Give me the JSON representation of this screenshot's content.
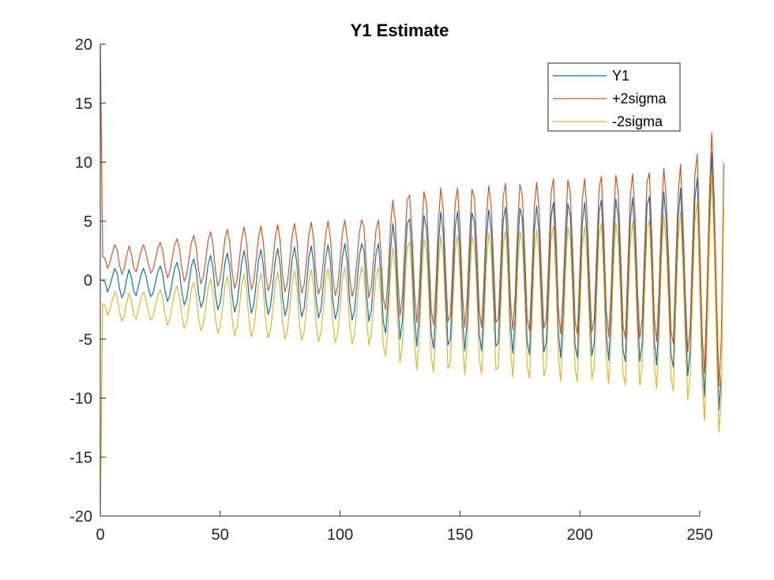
{
  "chart_data": {
    "type": "line",
    "title": "Y1 Estimate",
    "xlabel": "",
    "ylabel": "",
    "xlim": [
      0,
      250
    ],
    "ylim": [
      -20,
      20
    ],
    "x_ticks": [
      0,
      50,
      100,
      150,
      200,
      250
    ],
    "y_ticks": [
      -20,
      -15,
      -10,
      -5,
      0,
      5,
      10,
      15,
      20
    ],
    "grid": false,
    "legend_position": "top-right",
    "series": [
      {
        "name": "Y1",
        "color": "#0072BD",
        "x_start": 0,
        "x_step": 1,
        "values": [
          0,
          0,
          -0.2,
          -1,
          -0.5,
          0.3,
          1,
          0.6,
          -0.7,
          -1.5,
          -1,
          0.1,
          0.9,
          0.2,
          -1,
          -1.3,
          -0.4,
          0.5,
          1,
          0.4,
          -0.6,
          -1.4,
          -1.1,
          -0.2,
          0.7,
          1.2,
          0.5,
          -0.9,
          -1.8,
          -1.3,
          -0.1,
          1,
          1.5,
          0.7,
          -1,
          -2.1,
          -1.6,
          -0.2,
          1.2,
          1.8,
          0.8,
          -1.2,
          -2.3,
          -1.7,
          -0.2,
          1.4,
          2.1,
          1,
          -1.2,
          -2.5,
          -1.9,
          -0.3,
          1.5,
          2.3,
          1.1,
          -1.3,
          -2.7,
          -2,
          -0.3,
          1.6,
          2.5,
          1.2,
          -1.4,
          -2.8,
          -2.1,
          -0.3,
          1.7,
          2.6,
          1.2,
          -1.5,
          -2.9,
          -2.2,
          -0.4,
          1.7,
          2.7,
          1.3,
          -1.5,
          -3,
          -2.3,
          -0.4,
          1.8,
          2.8,
          1.4,
          -1.6,
          -3.1,
          -2.4,
          -0.4,
          1.9,
          2.9,
          1.4,
          -1.7,
          -3.2,
          -2.5,
          -0.4,
          1.9,
          3,
          1.5,
          -1.7,
          -3.3,
          -2.5,
          -0.4,
          2,
          3.1,
          1.5,
          -1.8,
          -3.4,
          -2.6,
          -0.4,
          2,
          3.1,
          2.5,
          -1,
          -3.5,
          -2.6,
          -0.1,
          2.3,
          3.1,
          0.5,
          -3.5,
          -4.5,
          -1.8,
          2.5,
          4.8,
          3,
          -1.5,
          -5,
          -3.4,
          1,
          4.8,
          5.2,
          2,
          -3,
          -5.6,
          -3,
          2,
          5.5,
          4.5,
          0.5,
          -4.5,
          -5.8,
          -2.3,
          3,
          5.8,
          4,
          -1,
          -5.5,
          -5,
          -0.5,
          4.5,
          5.8,
          2.5,
          -3,
          -6,
          -3.5,
          1.5,
          5.7,
          5,
          1,
          -4.5,
          -6,
          -2,
          3.3,
          6,
          4.3,
          -0.5,
          -5.6,
          -5.3,
          -0.5,
          5,
          6.2,
          2.5,
          -3.6,
          -6.2,
          -3.3,
          2.5,
          6.1,
          5.2,
          0.5,
          -5.2,
          -6.3,
          -1.5,
          4.2,
          6.3,
          4,
          -1.5,
          -6.1,
          -5.3,
          -0.2,
          5.4,
          6.6,
          2.2,
          -4.3,
          -6.6,
          -3,
          2.5,
          6.5,
          5.5,
          0.5,
          -5.5,
          -6.6,
          -1,
          4.8,
          6.6,
          3.7,
          -2,
          -6.4,
          -5.3,
          0.3,
          5.8,
          6.8,
          2,
          -4.5,
          -6.8,
          -3.1,
          3,
          6.9,
          5.5,
          0.3,
          -5.9,
          -6.9,
          -1,
          5,
          7,
          3.5,
          -2.5,
          -6.9,
          -5.3,
          0.7,
          6.3,
          7.1,
          1.8,
          -5,
          -7.2,
          -3,
          3.5,
          7.5,
          5,
          0,
          -6.3,
          -7.4,
          -0.7,
          5.3,
          7.8,
          3,
          -3.3,
          -8.1,
          -6,
          1,
          7,
          8.7,
          1,
          -6.6,
          -9.9,
          -3,
          5,
          10.8,
          5,
          -3.5,
          -11,
          -8
        ]
      },
      {
        "name": "+2sigma",
        "color": "#D95319",
        "x_start": 0,
        "x_step": 1,
        "values": [
          20,
          2,
          1.8,
          1,
          1.5,
          2.3,
          3,
          2.6,
          1.3,
          0.5,
          1,
          2.1,
          2.9,
          2.2,
          1,
          0.7,
          1.6,
          2.5,
          3,
          2.4,
          1.4,
          0.6,
          0.9,
          1.8,
          2.7,
          3.2,
          2.5,
          1.1,
          0.2,
          0.7,
          1.9,
          3,
          3.5,
          2.7,
          1,
          -0.1,
          0.4,
          1.8,
          3.2,
          3.8,
          2.8,
          0.8,
          -0.3,
          0.3,
          1.8,
          3.4,
          4.1,
          3,
          0.8,
          -0.5,
          0.1,
          1.7,
          3.5,
          4.3,
          3.1,
          0.7,
          -0.7,
          0,
          1.7,
          3.6,
          4.5,
          3.2,
          0.6,
          -0.8,
          -0.1,
          1.7,
          3.7,
          4.6,
          3.2,
          0.5,
          -0.9,
          -0.2,
          1.6,
          3.7,
          4.7,
          3.3,
          0.5,
          -1,
          -0.3,
          1.6,
          3.8,
          4.8,
          3.4,
          0.4,
          -1.1,
          -0.4,
          1.6,
          3.9,
          4.9,
          3.4,
          0.3,
          -1.2,
          -0.5,
          1.6,
          3.9,
          5,
          3.5,
          0.3,
          -1.3,
          -0.5,
          1.6,
          4,
          5.1,
          3.5,
          0.2,
          -1.4,
          -0.6,
          1.6,
          4,
          5.1,
          4.5,
          1,
          -1.5,
          -0.6,
          1.9,
          4.3,
          5.1,
          2.5,
          -1.5,
          -2.5,
          0.2,
          4.5,
          6.8,
          5,
          0.5,
          -3,
          -1.4,
          3,
          6.8,
          7.2,
          4,
          -1,
          -3.6,
          -1,
          4,
          7.5,
          6.5,
          2.5,
          -2.5,
          -3.8,
          -0.3,
          5,
          7.8,
          6,
          1,
          -3.5,
          -3,
          1.5,
          6.5,
          7.8,
          4.5,
          -1,
          -4,
          -1.5,
          3.5,
          7.7,
          7,
          3,
          -2.5,
          -4,
          0,
          5.3,
          8,
          6.3,
          1.5,
          -3.6,
          -3.3,
          1.5,
          7,
          8.2,
          4.5,
          -1.6,
          -4.2,
          -1.3,
          4.5,
          8.1,
          7.2,
          2.5,
          -3.2,
          -4.3,
          0.5,
          6.2,
          8.3,
          6,
          0.5,
          -4.1,
          -3.3,
          1.8,
          7.4,
          8.6,
          4.2,
          -2.3,
          -4.6,
          -1,
          4.5,
          8.5,
          7.5,
          2.5,
          -3.5,
          -4.6,
          1,
          6.8,
          8.6,
          5.7,
          0,
          -4.4,
          -3.3,
          2.3,
          7.8,
          8.8,
          4,
          -2.5,
          -4.8,
          -1.1,
          5,
          8.9,
          7.5,
          2.3,
          -3.9,
          -4.9,
          1,
          7,
          9,
          5.5,
          -0.5,
          -4.9,
          -3.3,
          2.7,
          8.3,
          9.1,
          3.8,
          -3,
          -5.2,
          -1,
          5.5,
          9.5,
          7,
          2,
          -4.3,
          -5.4,
          1.3,
          7.3,
          9.8,
          5,
          -1.3,
          -6.1,
          -4,
          3,
          9,
          10.7,
          3,
          -4.6,
          -7.9,
          -1,
          7,
          12.5,
          7,
          -1.5,
          -9,
          -5,
          9.9
        ]
      },
      {
        "name": "-2sigma",
        "color": "#EDB120",
        "x_start": 0,
        "x_step": 1,
        "values": [
          -20,
          -2,
          -2.2,
          -3,
          -2.5,
          -1.7,
          -1,
          -1.4,
          -2.7,
          -3.5,
          -3,
          -1.9,
          -1.1,
          -1.8,
          -3,
          -3.3,
          -2.4,
          -1.5,
          -1,
          -1.6,
          -2.6,
          -3.4,
          -3.1,
          -2.2,
          -1.3,
          -0.8,
          -1.5,
          -2.9,
          -3.8,
          -3.3,
          -2.1,
          -1,
          -0.5,
          -1.3,
          -3,
          -4.1,
          -3.6,
          -2.2,
          -0.8,
          -0.2,
          -1.2,
          -3.2,
          -4.3,
          -3.7,
          -2.2,
          -0.6,
          0.1,
          -1,
          -3.2,
          -4.5,
          -3.9,
          -2.3,
          -0.5,
          0.3,
          -0.9,
          -3.3,
          -4.7,
          -4,
          -2.3,
          -0.4,
          0.5,
          -0.8,
          -3.4,
          -4.8,
          -4.1,
          -2.3,
          -0.3,
          0.6,
          -0.8,
          -3.5,
          -4.9,
          -4.2,
          -2.4,
          -0.3,
          0.7,
          -0.7,
          -3.5,
          -5,
          -4.3,
          -2.4,
          -0.2,
          0.8,
          -0.6,
          -3.6,
          -5.1,
          -4.4,
          -2.4,
          -0.1,
          0.9,
          -0.6,
          -3.7,
          -5.2,
          -4.5,
          -2.4,
          -0.1,
          1,
          -0.5,
          -3.7,
          -5.3,
          -4.5,
          -2.4,
          0,
          1.1,
          -0.5,
          -3.8,
          -5.4,
          -4.6,
          -2.4,
          0,
          1.1,
          0.5,
          -3,
          -5.5,
          -4.6,
          -2.1,
          0.3,
          1.1,
          -1.5,
          -5.5,
          -6.5,
          -3.8,
          0.5,
          2.8,
          1,
          -3.5,
          -7,
          -5.4,
          -1,
          2.8,
          3.2,
          0,
          -5,
          -7.6,
          -5,
          0,
          3.5,
          2.5,
          -1.5,
          -6.5,
          -7.8,
          -4.3,
          1,
          3.8,
          2,
          -3,
          -7.5,
          -7,
          -2.5,
          2.5,
          3.8,
          0.5,
          -5,
          -8,
          -5.5,
          -0.5,
          3.7,
          3,
          -1,
          -6.5,
          -8,
          -4,
          1.3,
          4,
          2.3,
          -2.5,
          -7.6,
          -7.3,
          -2.5,
          3,
          4.2,
          0.5,
          -5.6,
          -8.2,
          -5.3,
          0.5,
          4.1,
          3.2,
          -1.5,
          -7.2,
          -8.3,
          -3.5,
          2.2,
          4.3,
          2,
          -3.5,
          -8.1,
          -7.3,
          -2.2,
          3.4,
          4.6,
          0.2,
          -6.3,
          -8.6,
          -5,
          0.5,
          4.5,
          3.5,
          -1.5,
          -7.5,
          -8.6,
          -3,
          2.8,
          4.6,
          1.7,
          -4,
          -8.4,
          -7.3,
          -1.7,
          3.8,
          4.8,
          0,
          -6.5,
          -8.8,
          -5.1,
          1,
          4.9,
          3.5,
          -1.7,
          -7.9,
          -8.9,
          -3,
          3,
          5,
          1.5,
          -4.5,
          -8.9,
          -7.3,
          -1.3,
          4.3,
          5.1,
          -0.2,
          -7,
          -9.2,
          -5,
          1.5,
          5.5,
          3,
          -2,
          -8.3,
          -9.4,
          -2.7,
          3.3,
          5.8,
          1,
          -5.3,
          -10.1,
          -8,
          -1,
          5,
          6.7,
          -1,
          -8.6,
          -11.9,
          -5,
          3,
          9.1,
          3,
          -5.5,
          -12.9,
          -10,
          6.2
        ]
      }
    ]
  }
}
